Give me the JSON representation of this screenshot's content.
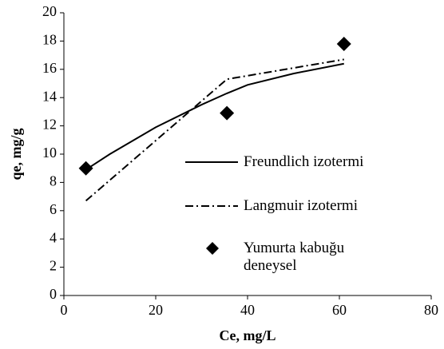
{
  "chart_data": {
    "type": "line",
    "xlabel": "Ce, mg/L",
    "ylabel": "qe,  mg/g",
    "xlim": [
      0,
      80
    ],
    "xticks": [
      0,
      20,
      40,
      60,
      80
    ],
    "ylim": [
      0,
      20
    ],
    "yticks": [
      0,
      2,
      4,
      6,
      8,
      10,
      12,
      14,
      16,
      18,
      20
    ],
    "grid": false,
    "legend": "right",
    "series": [
      {
        "name": "Freundlich izotermi",
        "color": "#000000",
        "style": "solid",
        "x": [
          4.8,
          10,
          20,
          30,
          35.5,
          40,
          50,
          61
        ],
        "values": [
          8.9,
          10.0,
          11.9,
          13.5,
          14.3,
          14.9,
          15.7,
          16.4
        ]
      },
      {
        "name": "Langmuir izotermi",
        "color": "#000000",
        "style": "dashdot",
        "x": [
          4.8,
          35.5,
          61
        ],
        "values": [
          6.7,
          15.3,
          16.7
        ]
      },
      {
        "name": "Yumurta kabuğu deneysel",
        "color": "#000000",
        "style": "diamond",
        "x": [
          4.8,
          35.5,
          61
        ],
        "values": [
          9.0,
          12.9,
          17.8
        ]
      }
    ]
  }
}
